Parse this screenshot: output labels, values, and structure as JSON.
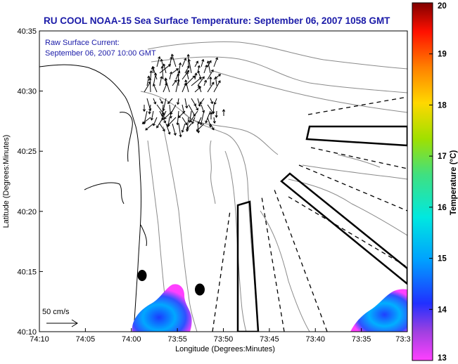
{
  "title": "RU COOL  NOAA-15  Sea Surface Temperature:  September 06, 2007 1058 GMT",
  "annotation": {
    "line1": "Raw Surface Current:",
    "line2": "September 06, 2007 10:00 GMT"
  },
  "scale_label": "50 cm/s",
  "x_axis": {
    "label": "Longitude (Degrees:Minutes)",
    "ticks": [
      "74:10",
      "74:05",
      "74:00",
      "73:55",
      "73:50",
      "73:45",
      "73:40",
      "73:35",
      "73:3"
    ]
  },
  "y_axis": {
    "label": "Latitude (Degrees:Minutes)",
    "ticks": [
      "40:35",
      "40:30",
      "40:25",
      "40:20",
      "40:15",
      "40:10"
    ]
  },
  "colorbar": {
    "label": "Temperature (°C)",
    "ticks": [
      "20",
      "19",
      "18",
      "17",
      "16",
      "15",
      "14",
      "13"
    ],
    "range": [
      13,
      20
    ],
    "colors": [
      "#ff00ff",
      "#8a2be2",
      "#1a3cff",
      "#00b0ff",
      "#00e5d0",
      "#5fe060",
      "#d8e000",
      "#ffb000",
      "#ff4000",
      "#d00000",
      "#7a0000"
    ]
  },
  "colors": {
    "title": "#1a1aa8",
    "contour": "#888888",
    "coast": "#000000"
  }
}
